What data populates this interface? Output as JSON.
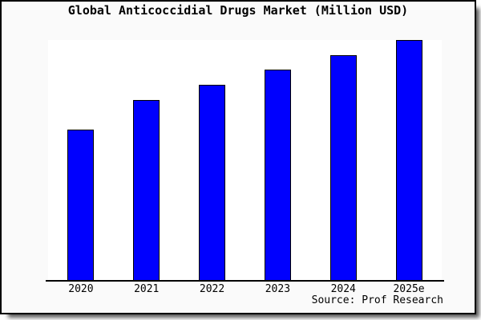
{
  "title": "Global Anticoccidial Drugs Market (Million USD)",
  "source_note": "Source: Prof Research",
  "colors": {
    "figure_background": "#fafafa",
    "plot_background": "#ffffff",
    "bar_fill": "#0000fe",
    "bar_edge": "#000000",
    "border": "#000000",
    "text": "#000000"
  },
  "chart_data": {
    "type": "bar",
    "title": "Global Anticoccidial Drugs Market (Million USD)",
    "categories": [
      "2020",
      "2021",
      "2022",
      "2023",
      "2024",
      "2025e"
    ],
    "values": [
      62.7,
      75.0,
      81.3,
      87.7,
      93.7,
      100.0
    ],
    "value_note": "no y-axis or data labels shown; values estimated from bar heights normalized to tallest bar = 100",
    "xlabel": "",
    "ylabel": "",
    "ylim": [
      0,
      100
    ],
    "grid": false,
    "legend_position": "none",
    "bar_color": "#0000fe",
    "bar_edge_color": "#000000"
  }
}
